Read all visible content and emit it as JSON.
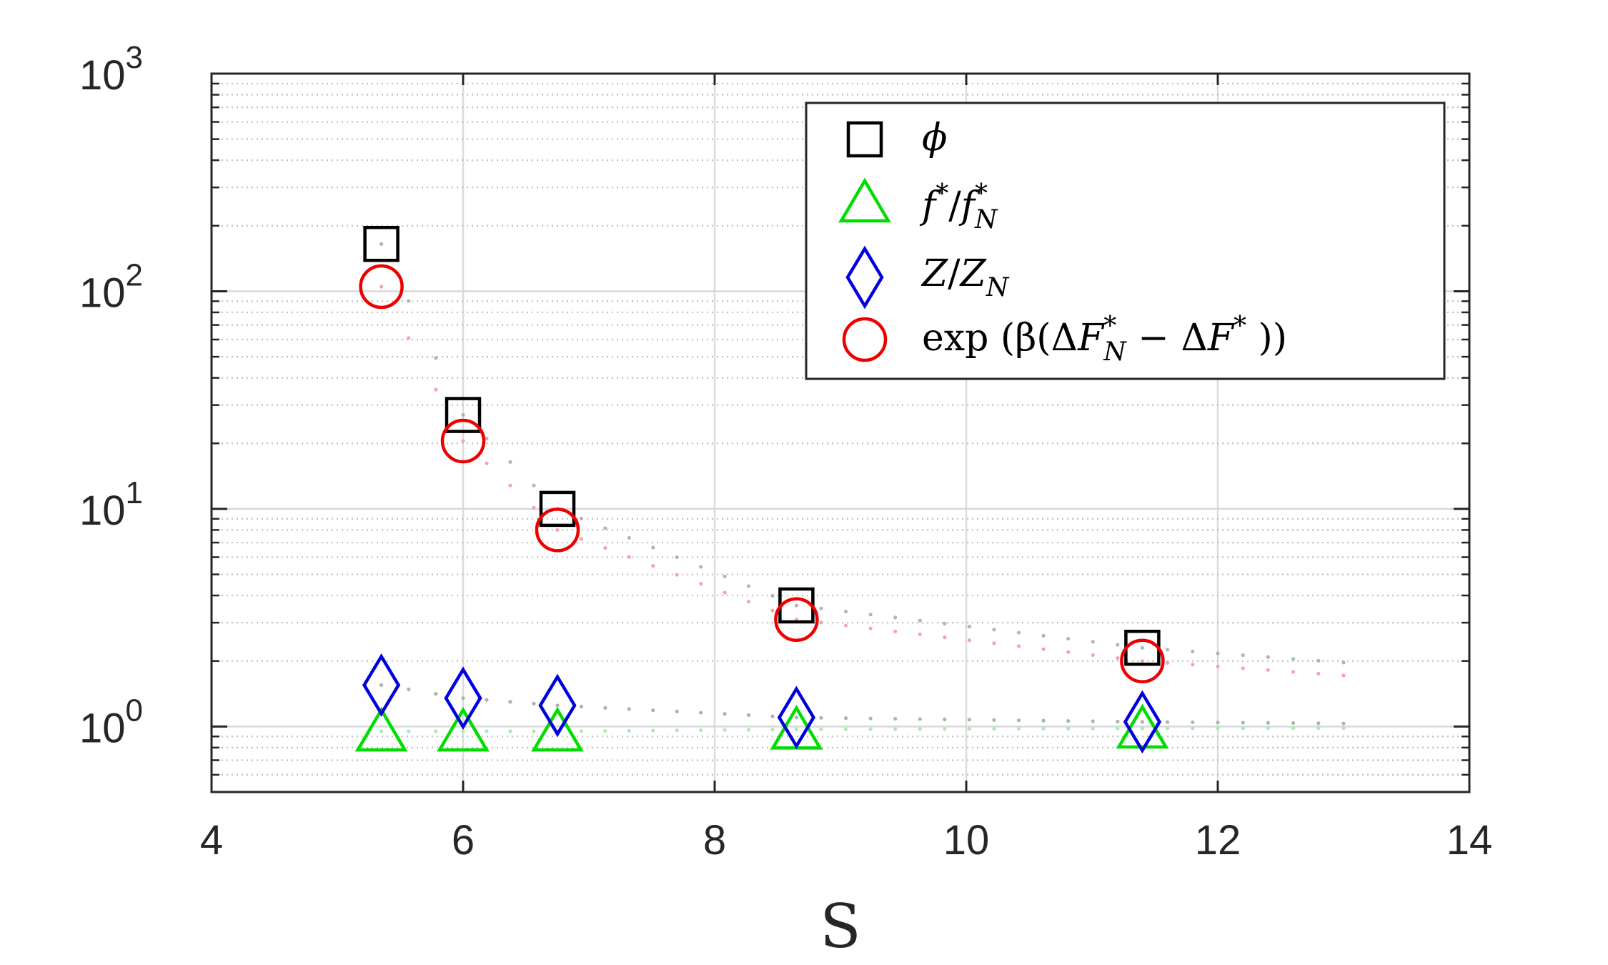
{
  "chart_data": {
    "type": "scatter",
    "xlabel": "S",
    "ylabel": "",
    "xlim": [
      4,
      14
    ],
    "ylim": [
      0.5,
      1000
    ],
    "yscale": "log",
    "grid": true,
    "legend_position": "top-right",
    "x_ticks": [
      "4",
      "6",
      "8",
      "10",
      "12",
      "14"
    ],
    "y_ticks": [
      {
        "base": "10",
        "exp": "0"
      },
      {
        "base": "10",
        "exp": "1"
      },
      {
        "base": "10",
        "exp": "2"
      },
      {
        "base": "10",
        "exp": "3"
      }
    ],
    "series": [
      {
        "name": "ϕ",
        "marker": "square",
        "color": "#000000",
        "x": [
          5.35,
          6.0,
          6.75,
          8.65,
          11.4
        ],
        "y": [
          165,
          27,
          10,
          3.6,
          2.3
        ]
      },
      {
        "name": "f*/f*N",
        "marker": "triangle",
        "color": "#00dd00",
        "x": [
          5.35,
          6.0,
          6.75,
          8.65,
          11.4
        ],
        "y": [
          0.95,
          0.95,
          0.95,
          0.97,
          0.98
        ]
      },
      {
        "name": "Z/ZN",
        "marker": "diamond",
        "color": "#0000dd",
        "x": [
          5.35,
          6.0,
          6.75,
          8.65,
          11.4
        ],
        "y": [
          1.55,
          1.35,
          1.25,
          1.1,
          1.05
        ]
      },
      {
        "name": "exp(β(ΔF*N − ΔF*))",
        "marker": "circle",
        "color": "#ee0000",
        "x": [
          5.35,
          6.0,
          6.75,
          8.65,
          11.4
        ],
        "y": [
          105,
          20.5,
          8.0,
          3.1,
          2.0
        ]
      }
    ],
    "legend_labels": {
      "phi": "ϕ",
      "f_main": "f",
      "f_sup": "*",
      "f_sep": "/",
      "fN_main": "f",
      "fN_sup": "*",
      "fN_sub": "N",
      "z_main": "Z",
      "z_sep": "/",
      "zN_main": "Z",
      "zN_sub": "N",
      "exp_pre": "exp (β(Δ",
      "exp_F": "F",
      "exp_sup": "*",
      "exp_sub": "N",
      "exp_mid": " − Δ",
      "exp_F2": "F",
      "exp_sup2": "*",
      "exp_post": " ))"
    }
  }
}
